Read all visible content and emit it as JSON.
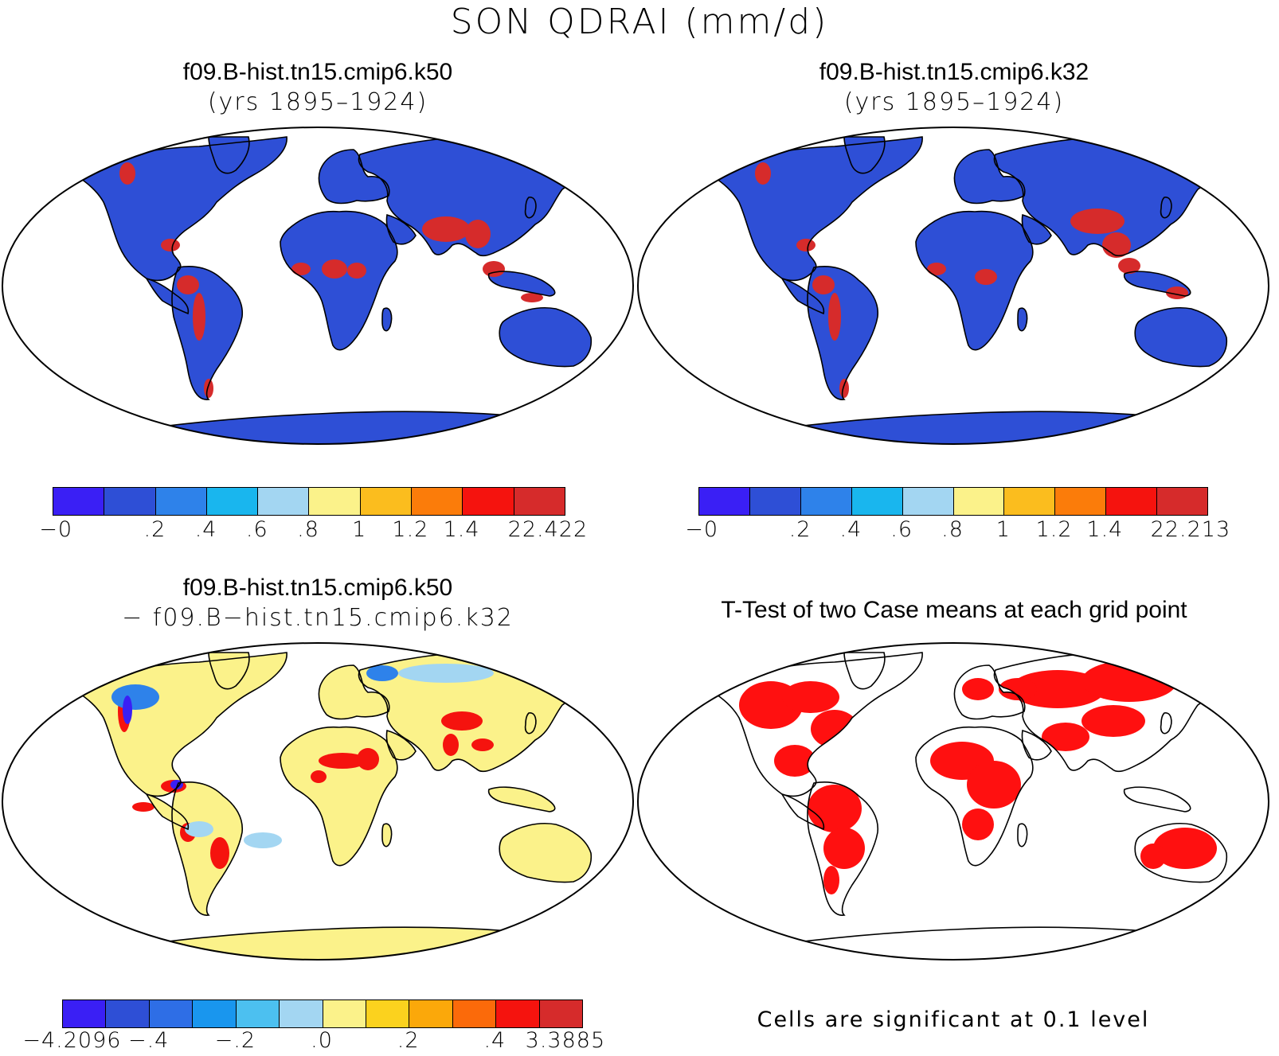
{
  "title": "SON QDRAI (mm/d)",
  "panels": [
    {
      "id": "k50",
      "title_line1": "f09.B-hist.tn15.cmip6.k50",
      "title_line2": "(yrs 1895–1924)",
      "base_color": "#2e4fd6",
      "colorbar": {
        "colors": [
          "#3a1ff5",
          "#2e4fd6",
          "#2e82ea",
          "#19b6ee",
          "#a3d6f2",
          "#fbf28a",
          "#fbbd1e",
          "#fb7c0a",
          "#f5130e",
          "#d62b2b"
        ],
        "labels": [
          "−0",
          ".2",
          ".4",
          ".6",
          ".8",
          "1",
          "1.2",
          "1.4",
          "22.422"
        ],
        "label_edges": [
          0,
          2,
          3,
          4,
          5,
          6,
          7,
          8,
          10
        ]
      }
    },
    {
      "id": "k32",
      "title_line1": "f09.B-hist.tn15.cmip6.k32",
      "title_line2": "(yrs 1895–1924)",
      "base_color": "#2e4fd6",
      "colorbar": {
        "colors": [
          "#3a1ff5",
          "#2e4fd6",
          "#2e82ea",
          "#19b6ee",
          "#a3d6f2",
          "#fbf28a",
          "#fbbd1e",
          "#fb7c0a",
          "#f5130e",
          "#d62b2b"
        ],
        "labels": [
          "−0",
          ".2",
          ".4",
          ".6",
          ".8",
          "1",
          "1.2",
          "1.4",
          "22.213"
        ],
        "label_edges": [
          0,
          2,
          3,
          4,
          5,
          6,
          7,
          8,
          10
        ]
      }
    },
    {
      "id": "diff",
      "title_line1": "f09.B-hist.tn15.cmip6.k50",
      "title_line2": "− f09.B−hist.tn15.cmip6.k32",
      "base_color": "#fbf28a",
      "colorbar": {
        "colors": [
          "#3a1ff5",
          "#2e4fd6",
          "#2e6ee6",
          "#1996ee",
          "#4cc0f0",
          "#a3d6f2",
          "#fbf28a",
          "#fbd21e",
          "#fba80a",
          "#fb6a0a",
          "#f5130e",
          "#d62b2b"
        ],
        "labels": [
          "−4.2096",
          "−.4",
          "−.2",
          ".0",
          ".2",
          ".4",
          "3.3885"
        ],
        "label_edges": [
          0,
          2,
          4,
          6,
          8,
          10,
          12
        ]
      }
    },
    {
      "id": "ttest",
      "title_line1": "T-Test of two Case means at each grid point",
      "title_line2": "",
      "base_color": "#ff1010",
      "note": "Cells are significant at 0.1 level"
    }
  ]
}
